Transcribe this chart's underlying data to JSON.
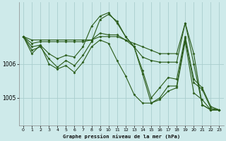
{
  "title": "Graphe pression niveau de la mer (hPa)",
  "bg_color": "#ceeaea",
  "grid_color": "#aacece",
  "line_color": "#2a5c1a",
  "xlim": [
    -0.5,
    23.5
  ],
  "ylim": [
    1004.2,
    1007.8
  ],
  "yticks": [
    1005.0,
    1006.0
  ],
  "xticks": [
    0,
    1,
    2,
    3,
    4,
    5,
    6,
    7,
    8,
    9,
    10,
    11,
    12,
    13,
    14,
    15,
    16,
    17,
    18,
    19,
    20,
    21,
    22,
    23
  ],
  "series": [
    [
      1006.8,
      1006.7,
      1006.7,
      1006.7,
      1006.7,
      1006.7,
      1006.7,
      1006.7,
      1006.7,
      1006.8,
      1006.8,
      1006.8,
      1006.7,
      1006.6,
      1006.5,
      1006.4,
      1006.3,
      1006.3,
      1006.3,
      1007.2,
      1006.3,
      1004.8,
      1004.65,
      1004.65
    ],
    [
      1006.8,
      1006.6,
      1006.65,
      1006.65,
      1006.65,
      1006.65,
      1006.65,
      1006.65,
      1006.7,
      1006.9,
      1006.85,
      1006.85,
      1006.7,
      1006.5,
      1006.2,
      1006.1,
      1006.05,
      1006.05,
      1006.05,
      1007.2,
      1006.0,
      1004.8,
      1004.65,
      1004.65
    ],
    [
      1006.8,
      1006.5,
      1006.55,
      1006.3,
      1006.15,
      1006.25,
      1006.2,
      1006.5,
      1007.1,
      1007.4,
      1007.5,
      1007.2,
      1006.8,
      1006.5,
      1005.8,
      1005.0,
      1005.3,
      1005.6,
      1005.55,
      1006.8,
      1005.55,
      1005.3,
      1004.75,
      1004.65
    ],
    [
      1006.8,
      1006.4,
      1006.5,
      1006.15,
      1005.9,
      1006.1,
      1005.95,
      1006.25,
      1006.65,
      1007.3,
      1007.45,
      1007.25,
      1006.8,
      1006.5,
      1005.7,
      1004.85,
      1005.0,
      1005.35,
      1005.35,
      1006.75,
      1005.45,
      1005.25,
      1004.7,
      1004.65
    ],
    [
      1006.8,
      1006.3,
      1006.55,
      1006.0,
      1005.85,
      1005.95,
      1005.75,
      1006.05,
      1006.5,
      1006.7,
      1006.6,
      1006.1,
      1005.65,
      1005.1,
      1004.85,
      1004.85,
      1004.95,
      1005.2,
      1005.3,
      1006.65,
      1005.15,
      1004.95,
      1004.65,
      1004.65
    ]
  ]
}
